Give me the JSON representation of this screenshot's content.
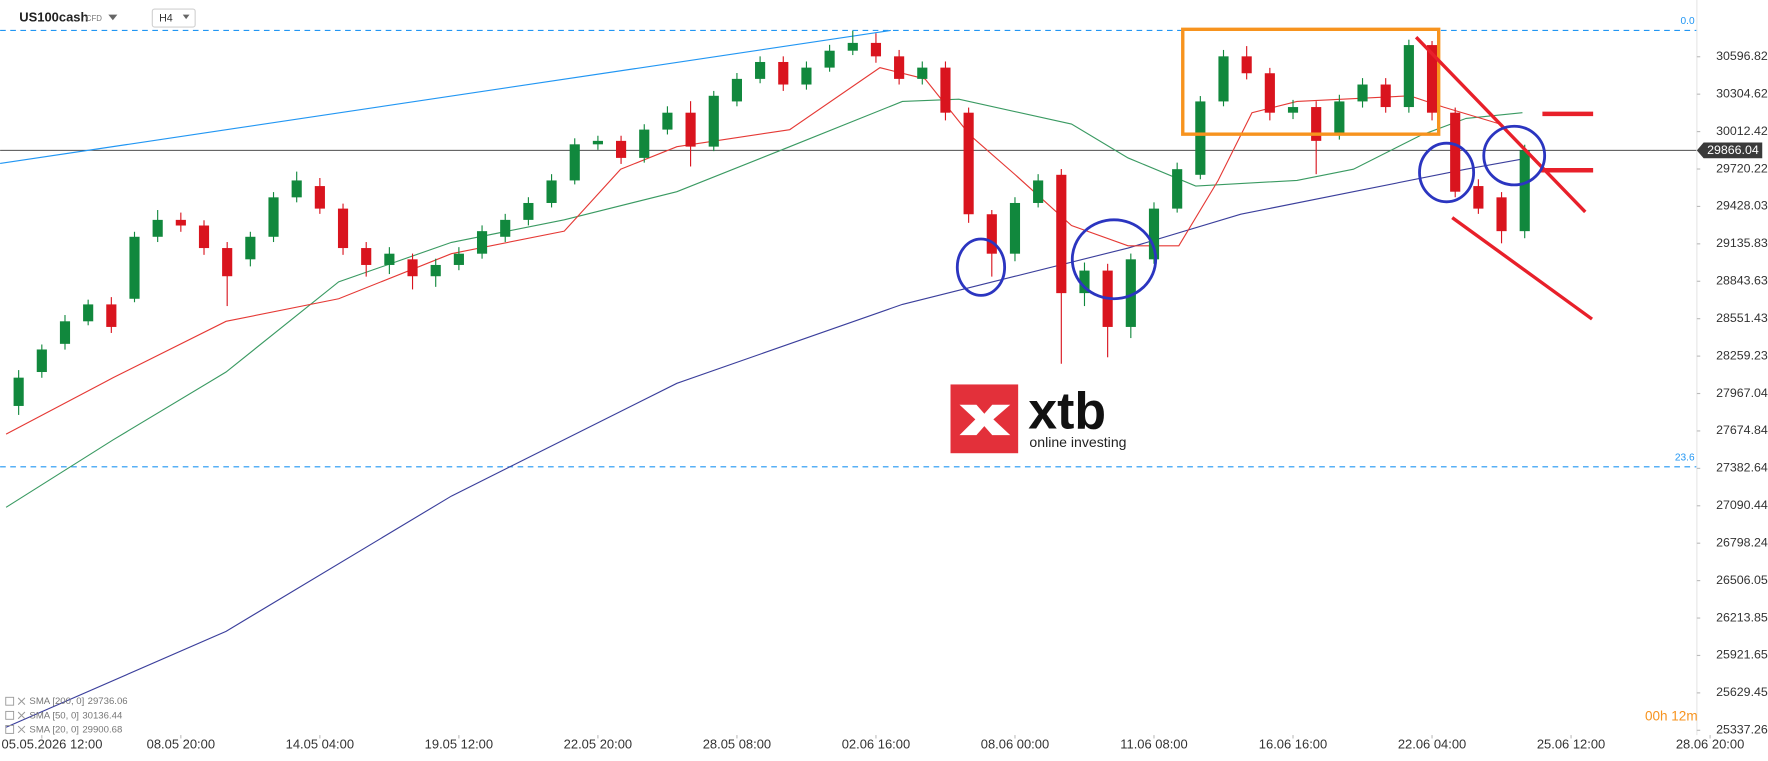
{
  "chart_data": {
    "type": "candlestick",
    "title": "US100cash",
    "instrument_type": "CFD",
    "timeframe": "H4",
    "x": [
      -1,
      0,
      1,
      2,
      3,
      4,
      5,
      6,
      7,
      8,
      9,
      10,
      11,
      12,
      13,
      14,
      15,
      16,
      17,
      18,
      19,
      20,
      21,
      22,
      23,
      24,
      25,
      26,
      27,
      28,
      29,
      30,
      31,
      32,
      33,
      34,
      35,
      36,
      37,
      38,
      39,
      40,
      41,
      42,
      43,
      44,
      45,
      46,
      47,
      48,
      49,
      50,
      51,
      52,
      53,
      54,
      55,
      56,
      57,
      58,
      59,
      60,
      61,
      62,
      63,
      64
    ],
    "open": [
      27870,
      28135,
      28355,
      28531,
      28663,
      28707,
      29191,
      29323,
      29279,
      29103,
      29015,
      29191,
      29499,
      29587,
      29411,
      29103,
      28971,
      29015,
      28883,
      28971,
      29059,
      29191,
      29323,
      29455,
      29631,
      29913,
      29940,
      29807,
      30028,
      30160,
      29895,
      30248,
      30424,
      30556,
      30380,
      30512,
      30644,
      30705,
      30600,
      30424,
      30512,
      30160,
      29367,
      29059,
      29455,
      29675,
      28751,
      28927,
      28487,
      29015,
      29411,
      29675,
      30248,
      30600,
      30468,
      30160,
      30204,
      29984,
      30248,
      30380,
      30204,
      30688,
      30160,
      29587,
      29499,
      29235
    ],
    "high": [
      28150,
      28350,
      28580,
      28700,
      28720,
      29230,
      29400,
      29380,
      29320,
      29150,
      29230,
      29540,
      29700,
      29650,
      29450,
      29150,
      29110,
      29060,
      29020,
      29110,
      29280,
      29370,
      29500,
      29680,
      29960,
      29980,
      29980,
      30070,
      30210,
      30250,
      30330,
      30470,
      30600,
      30600,
      30560,
      30690,
      30800,
      30780,
      30650,
      30560,
      30560,
      30200,
      29400,
      29500,
      29680,
      29720,
      28990,
      28980,
      29060,
      29460,
      29770,
      30290,
      30650,
      30680,
      30510,
      30260,
      30250,
      30300,
      30430,
      30430,
      30730,
      30720,
      30200,
      29640,
      29540,
      29910
    ],
    "low": [
      27800,
      28090,
      28310,
      28500,
      28440,
      28680,
      29150,
      29230,
      29050,
      28650,
      28960,
      29150,
      29460,
      29370,
      29050,
      28880,
      28900,
      28780,
      28800,
      28930,
      29020,
      29150,
      29280,
      29420,
      29600,
      29870,
      29760,
      29770,
      29990,
      29740,
      29860,
      30210,
      30390,
      30330,
      30340,
      30480,
      30610,
      30550,
      30380,
      30380,
      30100,
      29300,
      28880,
      29000,
      29420,
      28200,
      28650,
      28250,
      28400,
      28980,
      29380,
      29640,
      30210,
      30420,
      30100,
      30110,
      29680,
      29950,
      30200,
      30160,
      30160,
      30100,
      29500,
      29370,
      29140,
      29180
    ],
    "close": [
      28091,
      28311,
      28531,
      28663,
      28487,
      29191,
      29323,
      29279,
      29103,
      28883,
      29191,
      29499,
      29631,
      29411,
      29103,
      28971,
      29059,
      28883,
      28971,
      29059,
      29235,
      29323,
      29455,
      29631,
      29913,
      29940,
      29807,
      30028,
      30160,
      29895,
      30292,
      30424,
      30556,
      30380,
      30512,
      30644,
      30705,
      30600,
      30424,
      30512,
      30160,
      29367,
      29059,
      29455,
      29631,
      28751,
      28927,
      28487,
      29015,
      29411,
      29719,
      30248,
      30600,
      30468,
      30160,
      30204,
      29940,
      30248,
      30380,
      30204,
      30688,
      30160,
      29543,
      29411,
      29235,
      29866
    ],
    "up_color": "#11883d",
    "down_color": "#d9141e",
    "xlim": [
      -1.8,
      72.5
    ],
    "ylim": [
      25300,
      31040
    ],
    "xticks": [
      {
        "value": 0,
        "label": "05.05.2026 12:00"
      },
      {
        "value": 6,
        "label": "08.05 20:00"
      },
      {
        "value": 12,
        "label": "14.05 04:00"
      },
      {
        "value": 18,
        "label": "19.05 12:00"
      },
      {
        "value": 24,
        "label": "22.05 20:00"
      },
      {
        "value": 30,
        "label": "28.05 08:00"
      },
      {
        "value": 36,
        "label": "02.06 16:00"
      },
      {
        "value": 42,
        "label": "08.06 00:00"
      },
      {
        "value": 48,
        "label": "11.06 08:00"
      },
      {
        "value": 54,
        "label": "16.06 16:00"
      },
      {
        "value": 60,
        "label": "22.06 04:00"
      },
      {
        "value": 66,
        "label": "25.06 12:00"
      },
      {
        "value": 72,
        "label": "28.06 20:00"
      }
    ],
    "yticks": [
      30596.82,
      30304.62,
      30012.42,
      29720.22,
      29428.03,
      29135.83,
      28843.63,
      28551.43,
      28259.23,
      27967.04,
      27674.84,
      27382.64,
      27090.44,
      26798.24,
      26506.05,
      26213.85,
      25921.65,
      25629.45,
      25337.26
    ],
    "last_price": 29866.04,
    "fib_levels": [
      {
        "value": 30802,
        "label": "0.0"
      },
      {
        "value": 27395,
        "label": "23.6"
      }
    ],
    "series": [
      {
        "name": "SMA [200, 0]",
        "last": 29736.06,
        "color": "#3b3f9c",
        "x": [
          -1.54,
          7.95,
          17.68,
          27.41,
          37.14,
          42.01,
          46.88,
          51.75,
          56.61,
          61.47,
          64.15
        ],
        "values": [
          25361,
          26110,
          27166,
          28047,
          28663,
          28883,
          29103,
          29367,
          29543,
          29719,
          29807
        ]
      },
      {
        "name": "SMA [50, 0]",
        "last": 30136.44,
        "color": "#3a9a62",
        "x": [
          -1.54,
          3.08,
          7.95,
          12.81,
          17.68,
          22.55,
          27.41,
          32.28,
          37.14,
          39.58,
          44.44,
          46.88,
          49.8,
          54.17,
          56.61,
          59.53,
          61.47,
          63.9
        ],
        "values": [
          27078,
          27606,
          28135,
          28839,
          29147,
          29323,
          29543,
          29895,
          30248,
          30265,
          30072,
          29807,
          29587,
          29631,
          29719,
          29984,
          30116,
          30160
        ]
      },
      {
        "name": "SMA [20, 0]",
        "last": 29900.68,
        "color": "#e53935",
        "x": [
          -1.54,
          3.08,
          7.95,
          12.81,
          17.68,
          22.55,
          24.98,
          27.41,
          32.28,
          36.17,
          38.12,
          40.06,
          42.01,
          44.44,
          46.88,
          49.07,
          50.77,
          52.23,
          54.17,
          59.04,
          60.5,
          62.93
        ],
        "values": [
          27650,
          28091,
          28531,
          28707,
          29059,
          29235,
          29719,
          29895,
          30028,
          30512,
          30424,
          29984,
          29675,
          29279,
          29121,
          29121,
          29631,
          30160,
          30248,
          30292,
          30204,
          30072
        ]
      }
    ],
    "logo_text": "xtb",
    "logo_tagline": "online investing",
    "countdown": "00h 12m"
  }
}
